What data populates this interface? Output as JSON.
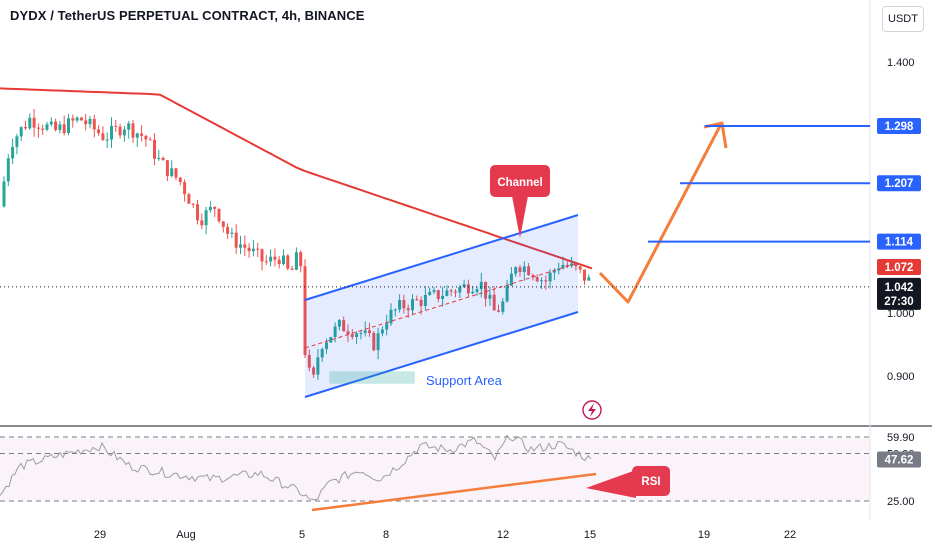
{
  "chart_title": "DYDX / TetherUS PERPETUAL CONTRACT, 4h, BINANCE",
  "currency": "USDT",
  "colors": {
    "up": "#26a69a",
    "down": "#ef5350",
    "ma": "#e53935",
    "channel": "#2962ff",
    "arrow": "#f57c3a",
    "rsi": "#9e9e9e"
  },
  "chart_data": [
    {
      "type": "candlestick",
      "title": "DYDX / TetherUS PERPETUAL CONTRACT, 4h, BINANCE",
      "y_unit": "USDT",
      "y_ticks": [
        "1.400",
        "1.000",
        "0.900"
      ],
      "x_ticks": [
        "29",
        "Aug",
        "5",
        "8",
        "12",
        "15",
        "19",
        "22"
      ],
      "ylim": [
        0.86,
        1.46
      ],
      "grid": false,
      "moving_average_color": "#e53935",
      "price_levels": [
        {
          "label": "1.298",
          "value": 1.298
        },
        {
          "label": "1.207",
          "value": 1.207
        },
        {
          "label": "1.114",
          "value": 1.114
        }
      ],
      "current_price": {
        "label": "1.042",
        "countdown": "27:30",
        "value": 1.042
      },
      "ma_value_label": "1.072",
      "annotations": {
        "channel": "Channel",
        "support": "Support Area"
      },
      "forecast_path": [
        1.072,
        1.025,
        1.298
      ]
    },
    {
      "type": "line",
      "name": "RSI",
      "y_ticks": [
        "59.90",
        "50.90",
        "25.00"
      ],
      "levels": [
        59.9,
        50.9,
        25.0
      ],
      "ylim": [
        20,
        66
      ],
      "current_label": "47.62",
      "current_value": 47.62,
      "annotation": "RSI"
    }
  ]
}
